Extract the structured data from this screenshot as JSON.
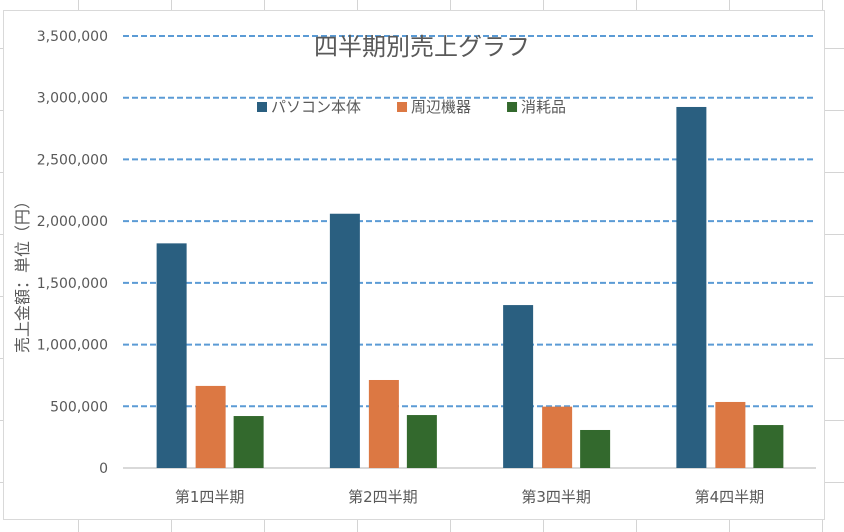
{
  "chart_data": {
    "type": "bar",
    "title": "四半期別売上グラフ",
    "xlabel": "",
    "ylabel": "売上金額：単位（円）",
    "categories": [
      "第1四半期",
      "第2四半期",
      "第3四半期",
      "第4四半期"
    ],
    "series": [
      {
        "name": "パソコン本体",
        "color": "#2a5f80",
        "values": [
          1820000,
          2060000,
          1320000,
          2925000
        ]
      },
      {
        "name": "周辺機器",
        "color": "#dc7843",
        "values": [
          665000,
          713000,
          497000,
          535000
        ]
      },
      {
        "name": "消耗品",
        "color": "#33692d",
        "values": [
          421000,
          429000,
          308000,
          348000
        ]
      }
    ],
    "ylim": [
      0,
      3500000
    ],
    "yticks": [
      "0",
      "500,000",
      "1,000,000",
      "1,500,000",
      "2,000,000",
      "2,500,000",
      "3,000,000",
      "3,500,000"
    ],
    "grid": true,
    "gridline_color": "#5b9bd5",
    "legend_position": "top"
  }
}
